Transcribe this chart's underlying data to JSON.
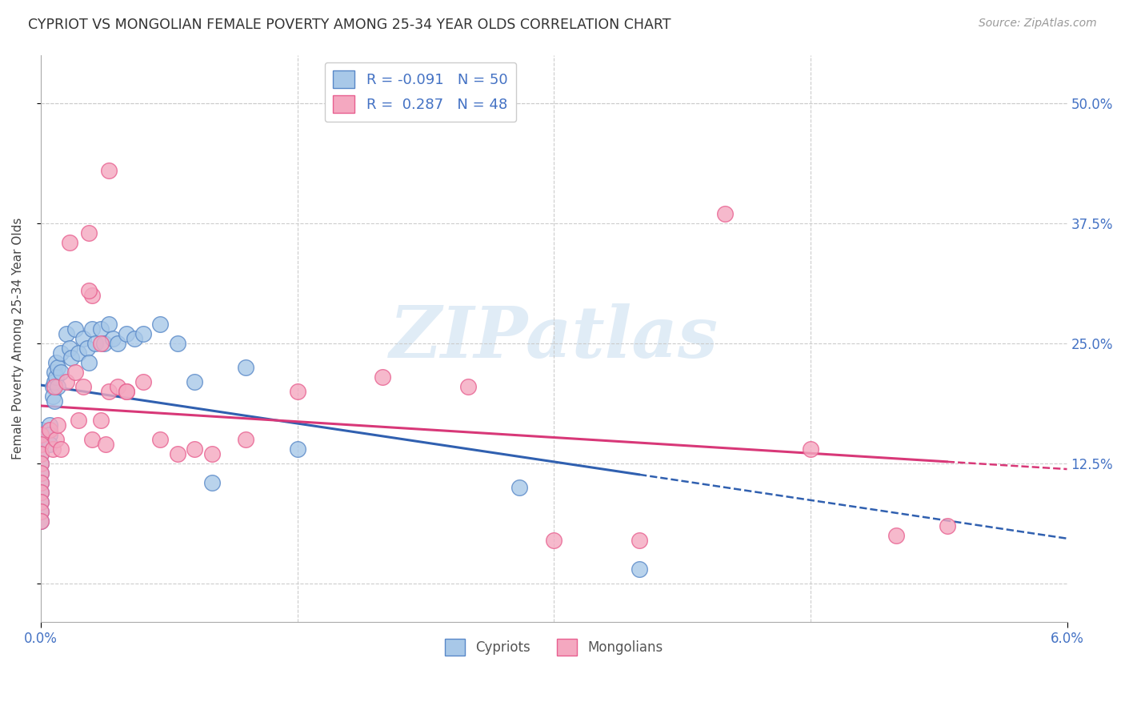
{
  "title": "CYPRIOT VS MONGOLIAN FEMALE POVERTY AMONG 25-34 YEAR OLDS CORRELATION CHART",
  "source": "Source: ZipAtlas.com",
  "ylabel": "Female Poverty Among 25-34 Year Olds",
  "xlim": [
    0.0,
    6.0
  ],
  "ylim": [
    -4.0,
    55.0
  ],
  "xtick_labels": [
    "0.0%",
    "6.0%"
  ],
  "ytick_labels": [
    "",
    "12.5%",
    "25.0%",
    "37.5%",
    "50.0%"
  ],
  "yticks": [
    0,
    12.5,
    25.0,
    37.5,
    50.0
  ],
  "cypriot_color": "#a8c8e8",
  "mongolian_color": "#f4a8c0",
  "cypriot_edge": "#5888c8",
  "mongolian_edge": "#e86090",
  "trend_cypriot_color": "#3060b0",
  "trend_mongolian_color": "#d83878",
  "R_cypriot": -0.091,
  "N_cypriot": 50,
  "R_mongolian": 0.287,
  "N_mongolian": 48,
  "watermark_text": "ZIPatlas",
  "background_color": "#ffffff",
  "grid_color": "#cccccc",
  "cypriot_x": [
    0.0,
    0.0,
    0.0,
    0.0,
    0.0,
    0.0,
    0.0,
    0.0,
    0.0,
    0.0,
    0.05,
    0.05,
    0.05,
    0.07,
    0.07,
    0.08,
    0.08,
    0.08,
    0.09,
    0.09,
    0.1,
    0.1,
    0.12,
    0.12,
    0.15,
    0.17,
    0.18,
    0.2,
    0.22,
    0.25,
    0.27,
    0.28,
    0.3,
    0.32,
    0.35,
    0.37,
    0.4,
    0.42,
    0.45,
    0.5,
    0.55,
    0.6,
    0.7,
    0.8,
    0.9,
    1.0,
    1.2,
    1.5,
    2.8,
    3.5
  ],
  "cypriot_y": [
    16.0,
    15.0,
    13.5,
    12.5,
    11.5,
    10.5,
    9.5,
    8.5,
    7.5,
    6.5,
    16.5,
    15.5,
    14.5,
    20.5,
    19.5,
    22.0,
    21.0,
    19.0,
    23.0,
    21.5,
    22.5,
    20.5,
    24.0,
    22.0,
    26.0,
    24.5,
    23.5,
    26.5,
    24.0,
    25.5,
    24.5,
    23.0,
    26.5,
    25.0,
    26.5,
    25.0,
    27.0,
    25.5,
    25.0,
    26.0,
    25.5,
    26.0,
    27.0,
    25.0,
    21.0,
    10.5,
    22.5,
    14.0,
    10.0,
    1.5
  ],
  "mongolian_x": [
    0.0,
    0.0,
    0.0,
    0.0,
    0.0,
    0.0,
    0.0,
    0.0,
    0.0,
    0.0,
    0.05,
    0.07,
    0.08,
    0.09,
    0.1,
    0.12,
    0.15,
    0.17,
    0.2,
    0.22,
    0.25,
    0.28,
    0.3,
    0.35,
    0.38,
    0.4,
    0.45,
    0.5,
    0.6,
    0.7,
    0.8,
    0.9,
    1.0,
    1.2,
    1.5,
    2.0,
    2.5,
    3.0,
    3.5,
    4.0,
    4.5,
    5.0,
    5.3,
    0.3,
    0.35,
    0.4,
    0.5,
    0.28
  ],
  "mongolian_y": [
    15.5,
    14.5,
    13.5,
    12.5,
    11.5,
    10.5,
    9.5,
    8.5,
    7.5,
    6.5,
    16.0,
    14.0,
    20.5,
    15.0,
    16.5,
    14.0,
    21.0,
    35.5,
    22.0,
    17.0,
    20.5,
    36.5,
    15.0,
    17.0,
    14.5,
    20.0,
    20.5,
    20.0,
    21.0,
    15.0,
    13.5,
    14.0,
    13.5,
    15.0,
    20.0,
    21.5,
    20.5,
    4.5,
    4.5,
    38.5,
    14.0,
    5.0,
    6.0,
    30.0,
    25.0,
    43.0,
    20.0,
    30.5
  ]
}
